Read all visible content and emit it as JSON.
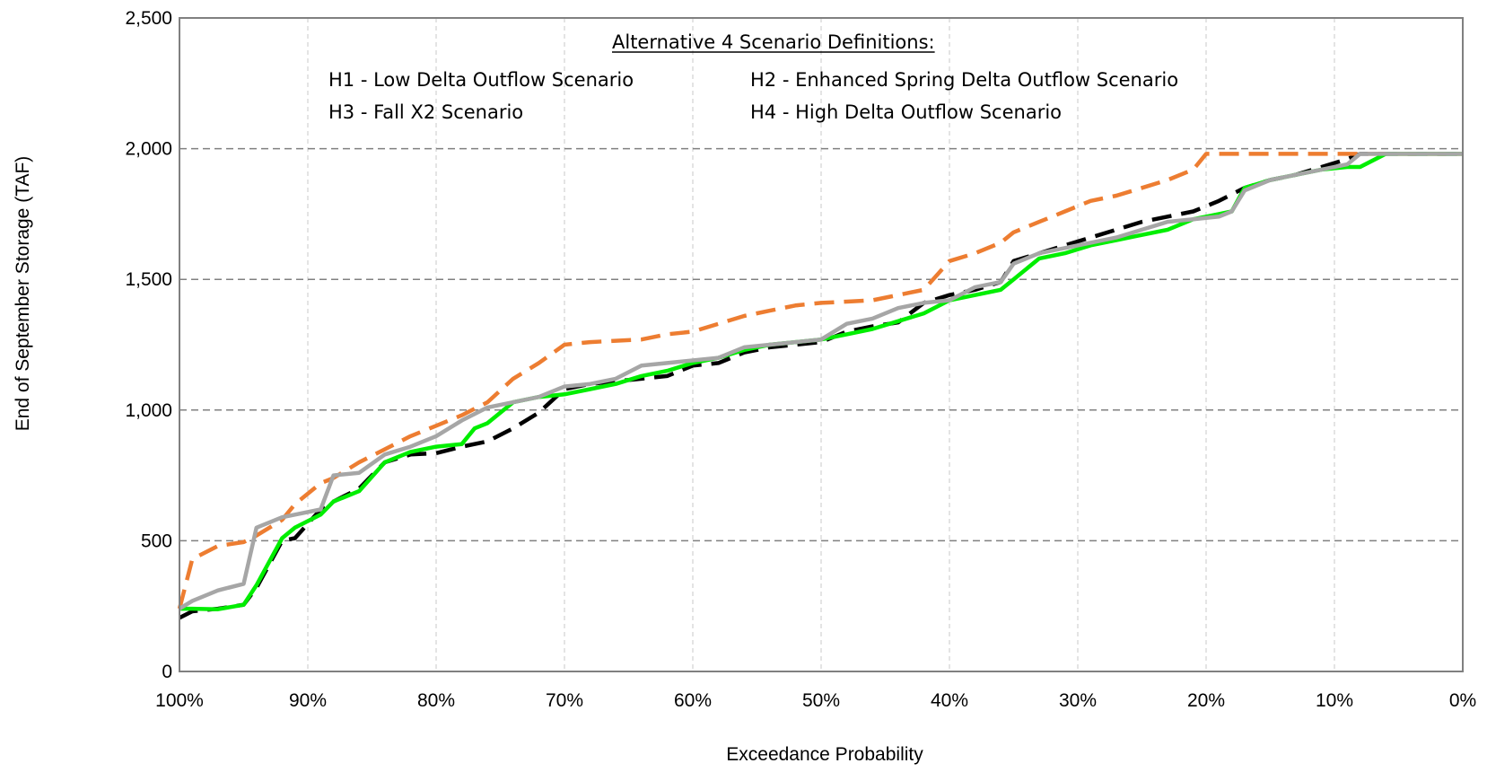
{
  "chart_data": {
    "type": "line",
    "title": "",
    "xlabel": "Exceedance Probability",
    "ylabel": "End of September Storage (TAF)",
    "xlim": [
      100,
      0
    ],
    "ylim": [
      0,
      2500
    ],
    "x_ticks": [
      100,
      90,
      80,
      70,
      60,
      50,
      40,
      30,
      20,
      10,
      0
    ],
    "x_tick_labels": [
      "100%",
      "90%",
      "80%",
      "70%",
      "60%",
      "50%",
      "40%",
      "30%",
      "20%",
      "10%",
      "0%"
    ],
    "y_ticks": [
      0,
      500,
      1000,
      1500,
      2000,
      2500
    ],
    "y_tick_labels": [
      "0",
      "500",
      "1,000",
      "1,500",
      "2,000",
      "2,500"
    ],
    "grid": true,
    "annotation": {
      "heading": "Alternative 4 Scenario Definitions:",
      "items": [
        "H1 - Low Delta Outflow Scenario",
        "H2 - Enhanced Spring Delta Outflow Scenario",
        "H3 - Fall X2 Scenario",
        "H4 - High Delta Outflow Scenario"
      ]
    },
    "series": [
      {
        "color": "#000000",
        "dash": "dashed",
        "x": [
          100,
          99,
          97,
          95,
          94,
          92,
          91,
          89,
          88,
          86,
          84,
          82,
          80,
          78,
          76,
          74,
          72,
          70,
          68,
          66,
          64,
          62,
          60,
          58,
          56,
          54,
          52,
          50,
          48,
          46,
          44,
          42,
          40,
          38,
          36,
          35,
          33,
          31,
          29,
          27,
          25,
          23,
          21,
          19,
          17,
          15,
          13,
          11,
          9,
          8,
          6,
          4,
          2,
          0
        ],
        "values": [
          205,
          230,
          240,
          255,
          320,
          500,
          510,
          620,
          650,
          700,
          800,
          830,
          835,
          860,
          880,
          930,
          990,
          1080,
          1100,
          1110,
          1120,
          1130,
          1170,
          1180,
          1220,
          1240,
          1250,
          1260,
          1300,
          1320,
          1335,
          1410,
          1440,
          1460,
          1490,
          1570,
          1600,
          1630,
          1660,
          1690,
          1720,
          1740,
          1760,
          1800,
          1850,
          1880,
          1900,
          1930,
          1960,
          1980,
          1980,
          1980,
          1980,
          1980
        ]
      },
      {
        "color": "#ED7D31",
        "dash": "dashed",
        "x": [
          100,
          99,
          97,
          95,
          94,
          92,
          91,
          89,
          88,
          86,
          84,
          82,
          80,
          78,
          76,
          74,
          72,
          70,
          68,
          66,
          64,
          62,
          60,
          58,
          56,
          54,
          52,
          50,
          48,
          46,
          44,
          42,
          40,
          38,
          36,
          35,
          33,
          31,
          29,
          27,
          25,
          23,
          21,
          20,
          19,
          17,
          15,
          13,
          11,
          9,
          8,
          6,
          4,
          2,
          0
        ],
        "values": [
          240,
          430,
          480,
          495,
          520,
          580,
          640,
          720,
          740,
          800,
          850,
          900,
          940,
          980,
          1030,
          1120,
          1180,
          1250,
          1260,
          1265,
          1270,
          1290,
          1300,
          1330,
          1360,
          1380,
          1400,
          1410,
          1415,
          1420,
          1440,
          1460,
          1570,
          1600,
          1640,
          1680,
          1720,
          1760,
          1800,
          1820,
          1850,
          1880,
          1920,
          1980,
          1980,
          1980,
          1980,
          1980,
          1980,
          1980,
          1980,
          1980,
          1980,
          1980,
          1980
        ]
      },
      {
        "color": "#00EE00",
        "dash": "solid",
        "x": [
          100,
          99,
          97,
          95,
          94,
          92,
          91,
          89,
          88,
          86,
          84,
          82,
          80,
          78,
          77,
          76,
          74,
          72,
          70,
          68,
          66,
          64,
          62,
          60,
          58,
          56,
          54,
          52,
          50,
          48,
          46,
          44,
          42,
          40,
          38,
          36,
          35,
          33,
          31,
          29,
          27,
          25,
          23,
          21,
          19,
          18,
          17,
          15,
          13,
          11,
          9,
          8,
          6,
          4,
          2,
          0
        ],
        "values": [
          240,
          240,
          238,
          255,
          330,
          510,
          550,
          600,
          650,
          690,
          800,
          840,
          860,
          870,
          930,
          950,
          1030,
          1050,
          1060,
          1080,
          1100,
          1130,
          1150,
          1180,
          1200,
          1230,
          1250,
          1260,
          1270,
          1290,
          1310,
          1340,
          1370,
          1420,
          1440,
          1460,
          1500,
          1580,
          1600,
          1630,
          1650,
          1670,
          1690,
          1730,
          1750,
          1760,
          1850,
          1880,
          1900,
          1920,
          1930,
          1930,
          1980,
          1980,
          1980,
          1980
        ]
      },
      {
        "color": "#A6A6A6",
        "dash": "solid",
        "x": [
          100,
          99,
          97,
          95,
          94,
          92,
          91,
          89,
          88,
          86,
          84,
          82,
          80,
          78,
          76,
          74,
          72,
          70,
          68,
          66,
          64,
          62,
          60,
          58,
          56,
          54,
          52,
          50,
          48,
          46,
          44,
          42,
          40,
          38,
          36,
          35,
          33,
          31,
          29,
          27,
          25,
          23,
          21,
          19,
          18,
          17,
          15,
          13,
          11,
          9,
          8,
          6,
          4,
          2,
          0
        ],
        "values": [
          240,
          270,
          310,
          335,
          550,
          590,
          600,
          620,
          750,
          760,
          830,
          860,
          900,
          960,
          1010,
          1030,
          1050,
          1090,
          1100,
          1120,
          1170,
          1180,
          1190,
          1200,
          1240,
          1250,
          1260,
          1270,
          1330,
          1350,
          1390,
          1410,
          1420,
          1470,
          1490,
          1560,
          1600,
          1620,
          1640,
          1660,
          1690,
          1720,
          1730,
          1740,
          1760,
          1840,
          1880,
          1900,
          1920,
          1940,
          1980,
          1980,
          1980,
          1980,
          1980
        ]
      }
    ]
  }
}
